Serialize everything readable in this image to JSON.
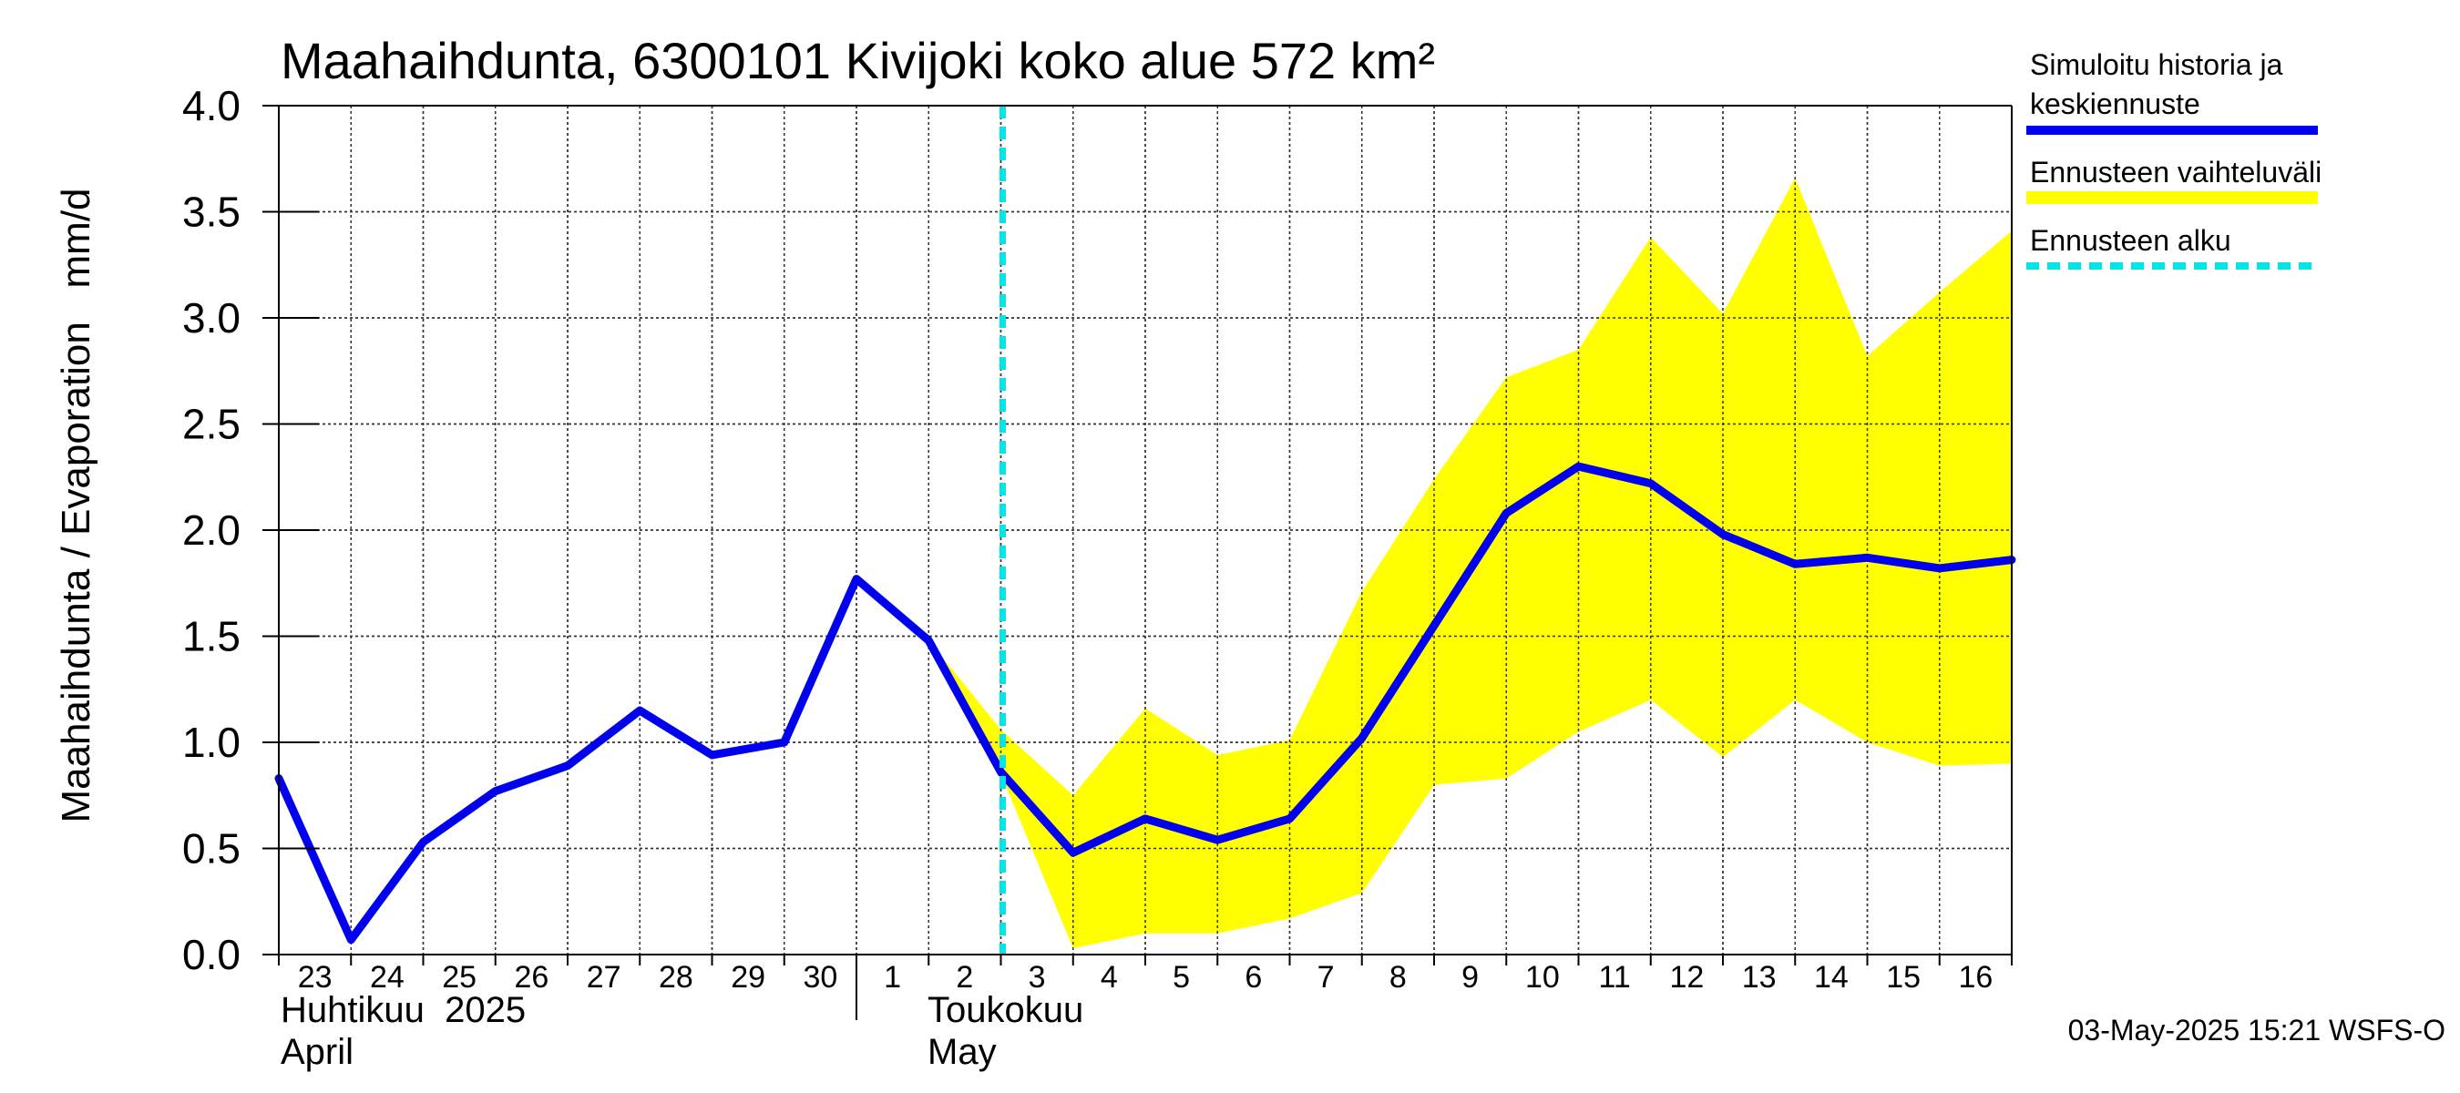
{
  "chart_data": {
    "type": "line",
    "title": "Maahaihdunta, 6300101 Kivijoki koko alue 572 km²",
    "ylabel": "Maahaihdunta / Evaporation   mm/d",
    "ylim": [
      0,
      4
    ],
    "yticks": [
      "0.0",
      "0.5",
      "1.0",
      "1.5",
      "2.0",
      "2.5",
      "3.0",
      "3.5",
      "4.0"
    ],
    "x_labels": [
      "23",
      "24",
      "25",
      "26",
      "27",
      "28",
      "29",
      "30",
      "1",
      "2",
      "3",
      "4",
      "5",
      "6",
      "7",
      "8",
      "9",
      "10",
      "11",
      "12",
      "13",
      "14",
      "15",
      "16"
    ],
    "month_labels": {
      "april_fi": "Huhtikuu  2025",
      "april_en": "April",
      "may_fi": "Toukokuu",
      "may_en": "May"
    },
    "grid": true,
    "legend_position": "right",
    "series": [
      {
        "name": "Simuloitu historia ja keskiennuste",
        "color": "#0000ee",
        "values": [
          0.83,
          0.07,
          0.53,
          0.77,
          0.89,
          1.15,
          0.94,
          1.0,
          1.77,
          1.48,
          0.86,
          0.48,
          0.64,
          0.54,
          0.64,
          1.02,
          1.55,
          2.08,
          2.3,
          2.22,
          1.98,
          1.84,
          1.87,
          1.82,
          1.86
        ]
      }
    ],
    "band": {
      "name": "Ennusteen vaihteluväli",
      "color": "#ffff00",
      "x": [
        9,
        10,
        11,
        12,
        13,
        14,
        15,
        16,
        17,
        18,
        19,
        20,
        21,
        22,
        23,
        24
      ],
      "upper": [
        1.48,
        1.06,
        0.75,
        1.16,
        0.94,
        1.01,
        1.71,
        2.24,
        2.72,
        2.85,
        3.38,
        3.02,
        3.66,
        2.82,
        3.12,
        3.41
      ],
      "lower": [
        1.48,
        0.85,
        0.03,
        0.1,
        0.1,
        0.17,
        0.29,
        0.8,
        0.83,
        1.05,
        1.2,
        0.93,
        1.2,
        1.0,
        0.89,
        0.9
      ]
    },
    "forecast_start": {
      "name": "Ennusteen alku",
      "color": "#00e5e5",
      "x": 10
    },
    "footer": "03-May-2025 15:21 WSFS-O"
  }
}
